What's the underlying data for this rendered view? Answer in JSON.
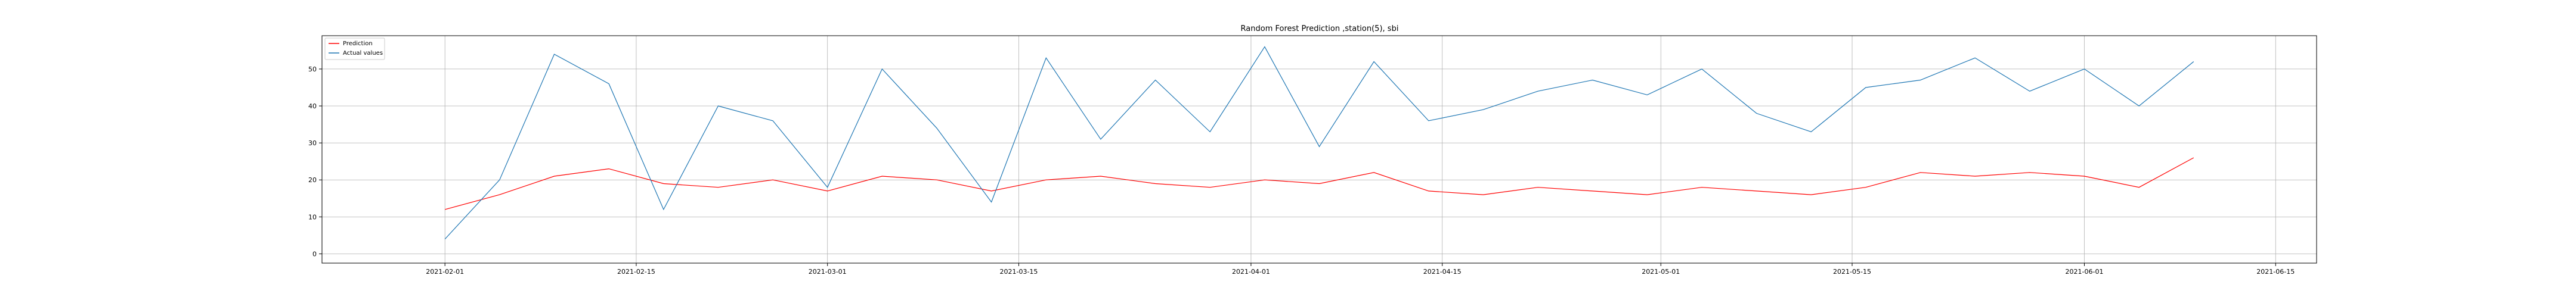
{
  "chart_data": {
    "type": "line",
    "title": "Random Forest Prediction ,station(5), sbi",
    "xlabel": "",
    "ylabel": "",
    "x_range": [
      "2021-01-23",
      "2021-06-18"
    ],
    "ylim": [
      -2.5,
      59
    ],
    "grid": true,
    "legend_position": "top-left",
    "x_ticks": [
      "2021-02-01",
      "2021-02-15",
      "2021-03-01",
      "2021-03-15",
      "2021-04-01",
      "2021-04-15",
      "2021-05-01",
      "2021-05-15",
      "2021-06-01",
      "2021-06-15"
    ],
    "y_ticks": [
      0,
      10,
      20,
      30,
      40,
      50
    ],
    "series": [
      {
        "name": "Prediction",
        "color": "#ff0000",
        "x": [
          "2021-02-01",
          "2021-02-05",
          "2021-02-09",
          "2021-02-13",
          "2021-02-17",
          "2021-02-21",
          "2021-02-25",
          "2021-03-01",
          "2021-03-05",
          "2021-03-09",
          "2021-03-13",
          "2021-03-17",
          "2021-03-21",
          "2021-03-25",
          "2021-03-29",
          "2021-04-02",
          "2021-04-06",
          "2021-04-10",
          "2021-04-14",
          "2021-04-18",
          "2021-04-22",
          "2021-04-26",
          "2021-04-30",
          "2021-05-04",
          "2021-05-08",
          "2021-05-12",
          "2021-05-16",
          "2021-05-20",
          "2021-05-24",
          "2021-05-28",
          "2021-06-01",
          "2021-06-05",
          "2021-06-09"
        ],
        "y": [
          12,
          16,
          21,
          23,
          19,
          18,
          20,
          17,
          21,
          20,
          17,
          20,
          21,
          19,
          18,
          20,
          19,
          22,
          17,
          16,
          18,
          17,
          16,
          18,
          17,
          16,
          18,
          22,
          21,
          22,
          21,
          18,
          26
        ]
      },
      {
        "name": "Actual values",
        "color": "#1f77b4",
        "x": [
          "2021-02-01",
          "2021-02-05",
          "2021-02-09",
          "2021-02-13",
          "2021-02-17",
          "2021-02-21",
          "2021-02-25",
          "2021-03-01",
          "2021-03-05",
          "2021-03-09",
          "2021-03-13",
          "2021-03-17",
          "2021-03-21",
          "2021-03-25",
          "2021-03-29",
          "2021-04-02",
          "2021-04-06",
          "2021-04-10",
          "2021-04-14",
          "2021-04-18",
          "2021-04-22",
          "2021-04-26",
          "2021-04-30",
          "2021-05-04",
          "2021-05-08",
          "2021-05-12",
          "2021-05-16",
          "2021-05-20",
          "2021-05-24",
          "2021-05-28",
          "2021-06-01",
          "2021-06-05",
          "2021-06-09"
        ],
        "y": [
          4,
          20,
          54,
          46,
          12,
          40,
          36,
          18,
          50,
          34,
          14,
          53,
          31,
          47,
          33,
          56,
          29,
          52,
          36,
          39,
          44,
          47,
          43,
          50,
          38,
          33,
          45,
          47,
          53,
          44,
          50,
          40,
          52
        ]
      }
    ]
  }
}
